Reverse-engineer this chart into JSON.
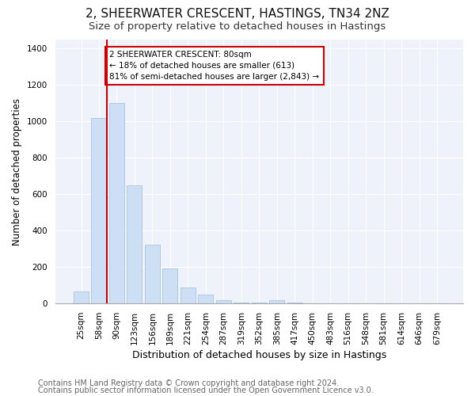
{
  "title": "2, SHEERWATER CRESCENT, HASTINGS, TN34 2NZ",
  "subtitle": "Size of property relative to detached houses in Hastings",
  "xlabel": "Distribution of detached houses by size in Hastings",
  "ylabel": "Number of detached properties",
  "categories": [
    "25sqm",
    "58sqm",
    "90sqm",
    "123sqm",
    "156sqm",
    "189sqm",
    "221sqm",
    "254sqm",
    "287sqm",
    "319sqm",
    "352sqm",
    "385sqm",
    "417sqm",
    "450sqm",
    "483sqm",
    "516sqm",
    "548sqm",
    "581sqm",
    "614sqm",
    "646sqm",
    "679sqm"
  ],
  "values": [
    65,
    1020,
    1100,
    650,
    325,
    192,
    88,
    48,
    20,
    5,
    5,
    20,
    5,
    0,
    0,
    0,
    0,
    0,
    0,
    0,
    0
  ],
  "bar_color": "#ccdff5",
  "bar_edge_color": "#aac4e0",
  "vline_color": "#cc0000",
  "vline_x": 1.45,
  "annotation_text": "2 SHEERWATER CRESCENT: 80sqm\n← 18% of detached houses are smaller (613)\n81% of semi-detached houses are larger (2,843) →",
  "annotation_box_facecolor": "#ffffff",
  "annotation_box_edgecolor": "#cc0000",
  "ylim": [
    0,
    1450
  ],
  "yticks": [
    0,
    200,
    400,
    600,
    800,
    1000,
    1200,
    1400
  ],
  "footer1": "Contains HM Land Registry data © Crown copyright and database right 2024.",
  "footer2": "Contains public sector information licensed under the Open Government Licence v3.0.",
  "title_fontsize": 11,
  "subtitle_fontsize": 9.5,
  "xlabel_fontsize": 9,
  "ylabel_fontsize": 8.5,
  "tick_fontsize": 7.5,
  "annot_fontsize": 7.5,
  "footer_fontsize": 7,
  "background_color": "#ffffff",
  "plot_bg_color": "#eef2fa"
}
